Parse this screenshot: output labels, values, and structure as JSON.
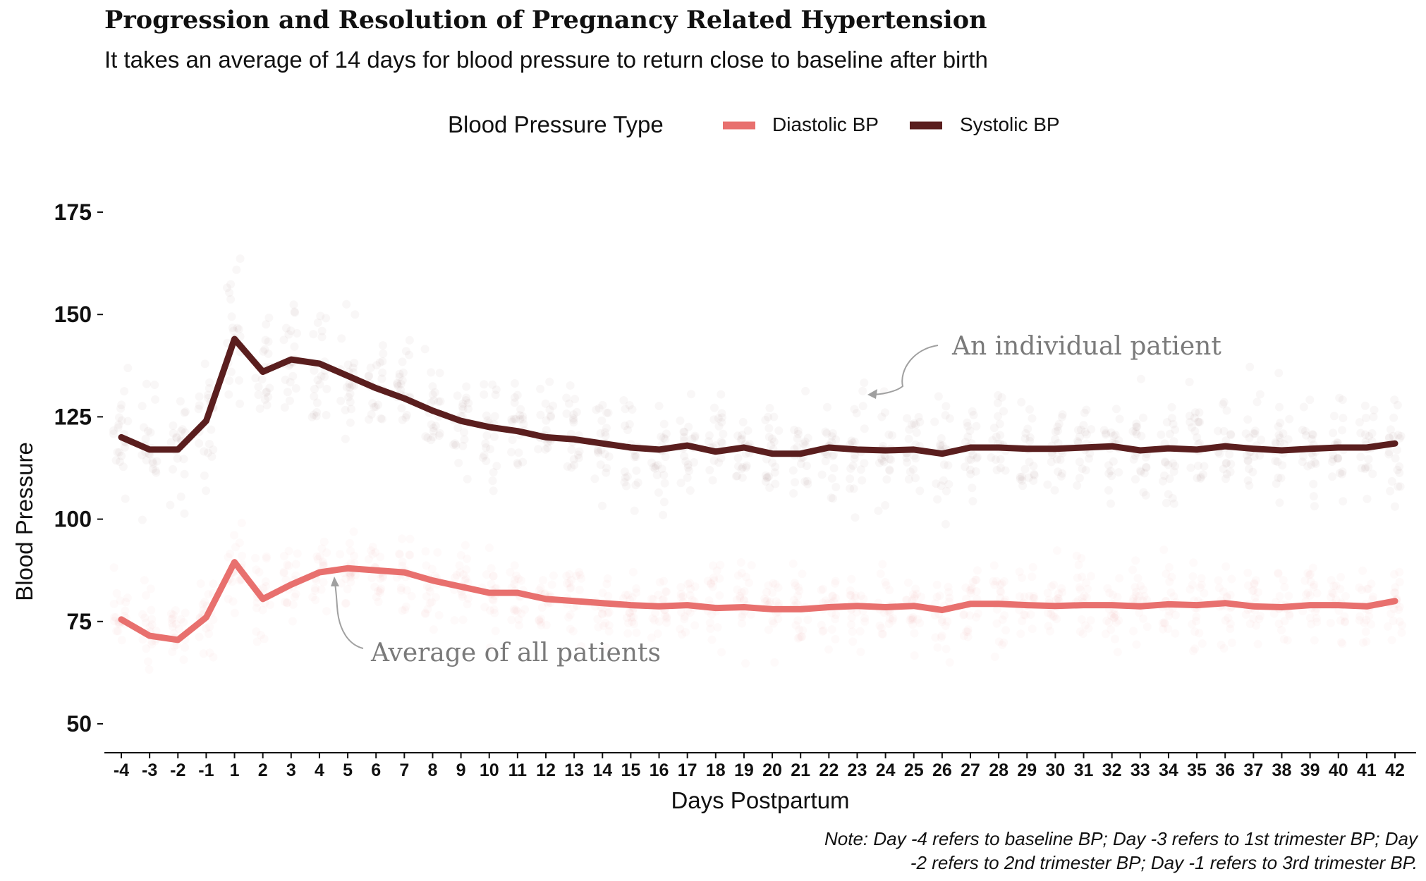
{
  "title": "Progression and Resolution of Pregnancy Related Hypertension",
  "subtitle": "It takes an average of 14 days for blood pressure to return close to baseline after birth",
  "legend": {
    "title": "Blood Pressure Type",
    "items": [
      {
        "label": "Diastolic BP",
        "color": "#e8706e"
      },
      {
        "label": "Systolic BP",
        "color": "#5a1e1e"
      }
    ]
  },
  "annotations": {
    "individual": "An individual patient",
    "average": "Average of all patients"
  },
  "caption": {
    "line1": "Note: Day -4 refers to baseline BP; Day -3 refers to 1st trimester BP; Day",
    "line2": "-2 refers to 2nd trimester BP; Day -1 refers to 3rd trimester BP."
  },
  "chart_data": {
    "type": "line",
    "title": "Progression and Resolution of Pregnancy Related Hypertension",
    "xlabel": "Days Postpartum",
    "ylabel": "Blood Pressure",
    "ylim": [
      45,
      180
    ],
    "yticks": [
      50,
      75,
      100,
      125,
      150,
      175
    ],
    "categories": [
      "-4",
      "-3",
      "-2",
      "-1",
      "1",
      "2",
      "3",
      "4",
      "5",
      "6",
      "7",
      "8",
      "9",
      "10",
      "11",
      "12",
      "13",
      "14",
      "15",
      "16",
      "17",
      "18",
      "19",
      "20",
      "21",
      "22",
      "23",
      "24",
      "25",
      "26",
      "27",
      "28",
      "29",
      "30",
      "31",
      "32",
      "33",
      "34",
      "35",
      "36",
      "37",
      "38",
      "39",
      "40",
      "41",
      "42"
    ],
    "series": [
      {
        "name": "Systolic BP",
        "color": "#5a1e1e",
        "values": [
          120,
          117,
          117,
          124,
          144,
          136,
          139,
          138,
          135,
          132,
          129.5,
          126.5,
          124,
          122.5,
          121.5,
          120,
          119.5,
          118.5,
          117.5,
          117,
          118,
          116.5,
          117.5,
          116,
          116,
          117.5,
          117,
          116.8,
          117,
          116,
          117.5,
          117.5,
          117.2,
          117.2,
          117.5,
          117.8,
          116.8,
          117.3,
          117,
          117.8,
          117.2,
          116.8,
          117.2,
          117.5,
          117.5,
          118.5
        ]
      },
      {
        "name": "Diastolic BP",
        "color": "#e8706e",
        "values": [
          75.5,
          71.5,
          70.5,
          76,
          89.5,
          80.5,
          84,
          87,
          88,
          87.5,
          87,
          85,
          83.5,
          82,
          82,
          80.5,
          80,
          79.5,
          79,
          78.7,
          79,
          78.3,
          78.5,
          78,
          78,
          78.5,
          78.8,
          78.5,
          78.8,
          77.8,
          79.3,
          79.3,
          79,
          78.8,
          79,
          79,
          78.7,
          79.2,
          79,
          79.5,
          78.7,
          78.5,
          79,
          79,
          78.7,
          80
        ]
      }
    ],
    "grid": false,
    "legend_position": "top"
  }
}
